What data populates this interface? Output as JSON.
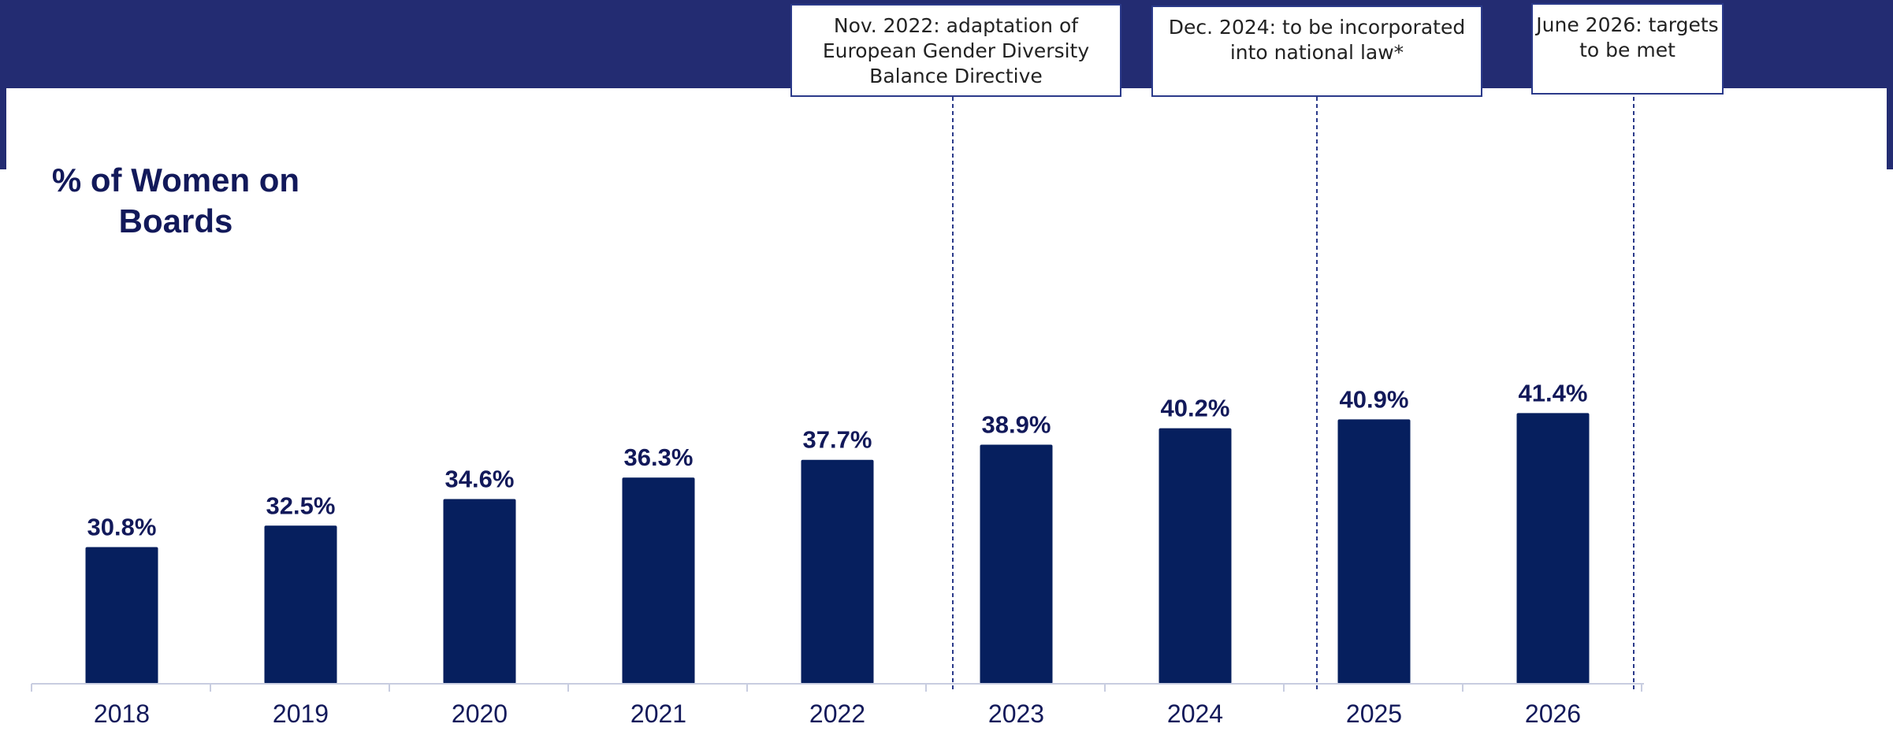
{
  "chart_data": {
    "type": "bar",
    "title": "% of Women on Boards",
    "categories": [
      "2018",
      "2019",
      "2020",
      "2021",
      "2022",
      "2023",
      "2024",
      "2025",
      "2026"
    ],
    "values": [
      30.8,
      32.5,
      34.6,
      36.3,
      37.7,
      38.9,
      40.2,
      40.9,
      41.4
    ],
    "value_labels": [
      "30.8%",
      "32.5%",
      "34.6%",
      "36.3%",
      "37.7%",
      "38.9%",
      "40.2%",
      "40.9%",
      "41.4%"
    ],
    "unit": "%",
    "xlabel": "",
    "ylabel": "",
    "ylim": [
      20,
      43
    ],
    "grid": false,
    "legend": "none",
    "bar_color": "#061f5e",
    "annotations": [
      {
        "text": "Nov. 2022: adaptation of European Gender Diversity Balance Directive",
        "position": "between 2022 and 2023"
      },
      {
        "text": "Dec. 2024: to be incorporated into national law*",
        "position": "between 2024 and 2025"
      },
      {
        "text": "June 2026: targets to be met",
        "position": "after 2026"
      }
    ]
  },
  "colors": {
    "header_band": "#232c72",
    "title_text": "#12195a",
    "axis_line": "#c8cde0",
    "marker_line": "#2b3a8a"
  }
}
